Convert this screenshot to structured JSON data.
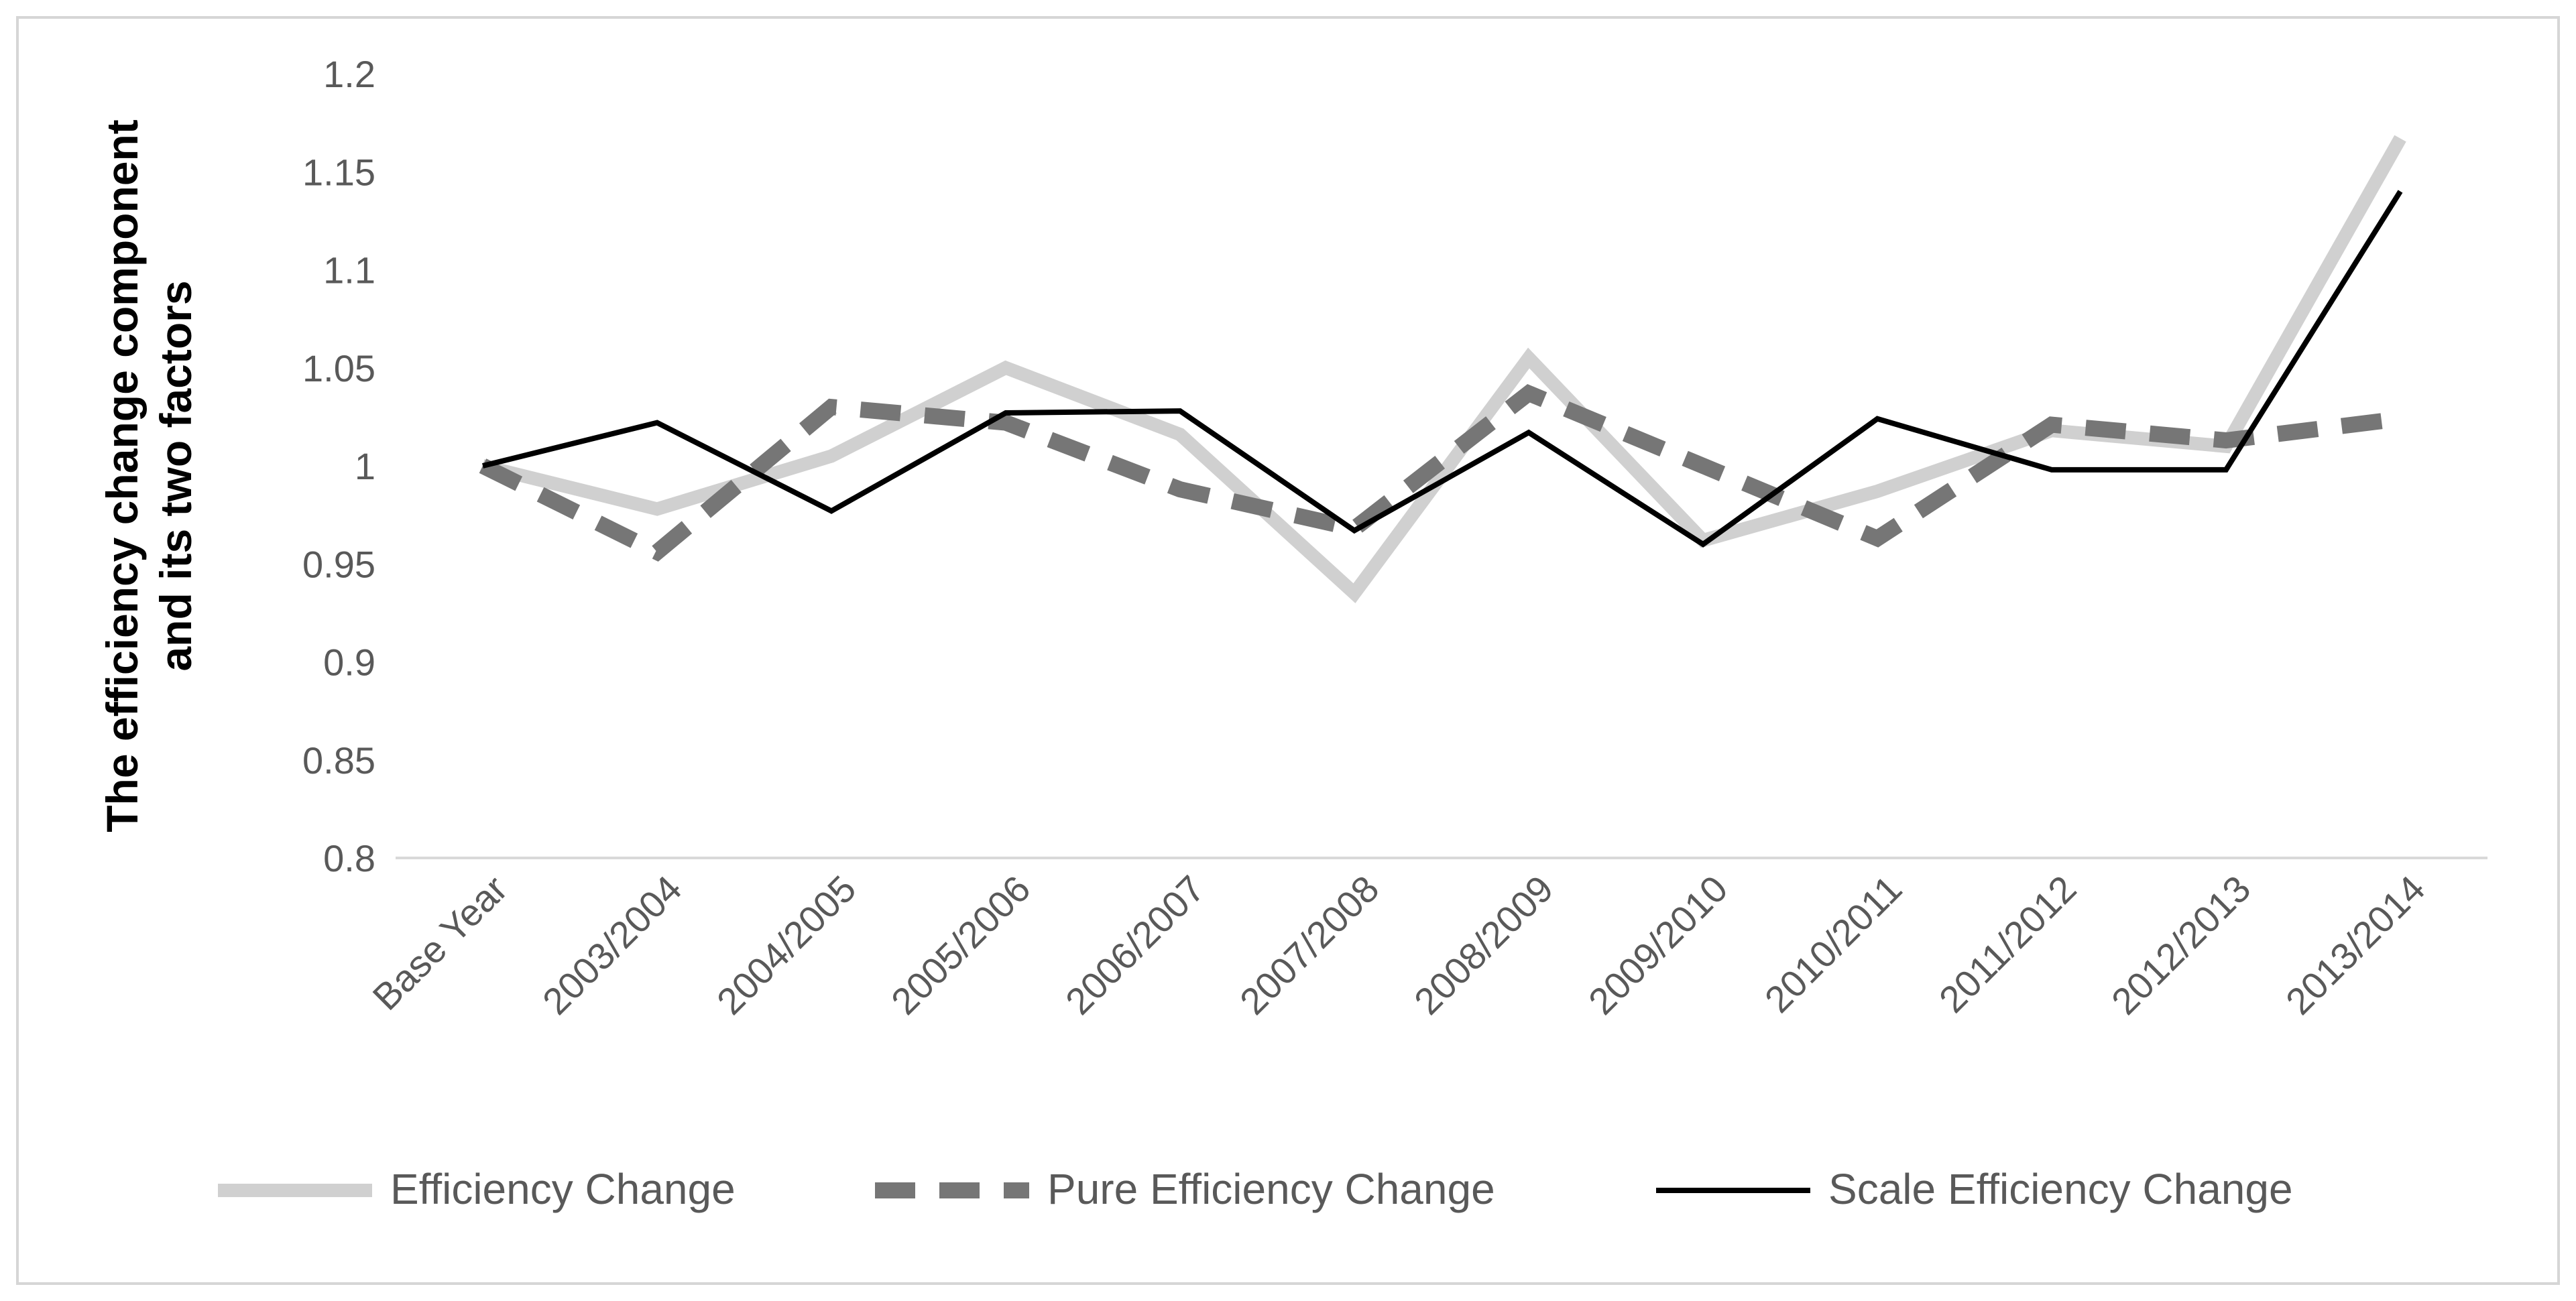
{
  "chart_data": {
    "type": "line",
    "title": "",
    "xlabel": "",
    "ylabel": "The efficiency change component and its two factors",
    "ylim": [
      0.8,
      1.2
    ],
    "yticks": [
      "0.8",
      "0.85",
      "0.9",
      "0.95",
      "1",
      "1.05",
      "1.1",
      "1.15",
      "1.2"
    ],
    "grid": false,
    "legend_position": "bottom",
    "categories": [
      "Base Year",
      "2003/2004",
      "2004/2005",
      "2005/2006",
      "2006/2007",
      "2007/2008",
      "2008/2009",
      "2009/2010",
      "2010/2011",
      "2011/2012",
      "2012/2013",
      "2013/2014"
    ],
    "series": [
      {
        "name": "Efficiency Change",
        "style": "solid-light",
        "color": "#d0d0d0",
        "values": [
          1.0,
          0.978,
          1.005,
          1.05,
          1.016,
          0.935,
          1.055,
          0.962,
          0.987,
          1.018,
          1.01,
          1.167
        ]
      },
      {
        "name": "Pure Efficiency Change",
        "style": "dashed",
        "color": "#767676",
        "values": [
          1.0,
          0.956,
          1.03,
          1.022,
          0.988,
          0.968,
          1.037,
          1.0,
          0.963,
          1.021,
          1.013,
          1.024
        ]
      },
      {
        "name": "Scale Efficiency Change",
        "style": "solid-dark",
        "color": "#000000",
        "values": [
          1.0,
          1.022,
          0.977,
          1.027,
          1.028,
          0.967,
          1.017,
          0.96,
          1.024,
          0.998,
          0.998,
          1.14
        ]
      }
    ]
  }
}
